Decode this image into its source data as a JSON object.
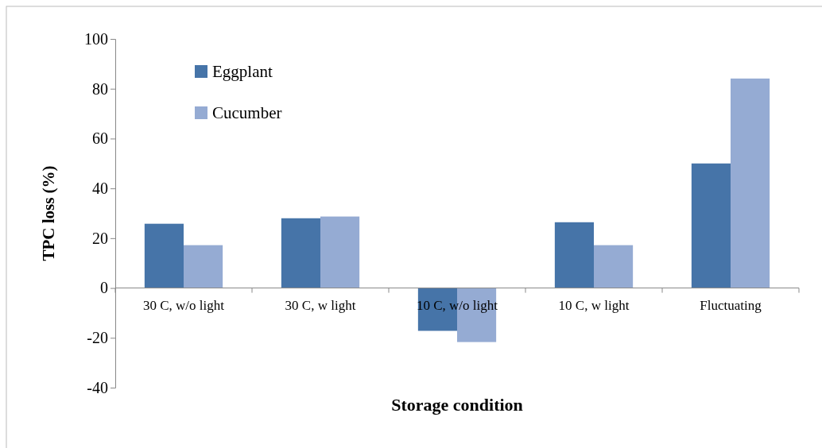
{
  "chart_data": {
    "type": "bar",
    "xlabel": "Storage condition",
    "ylabel": "TPC loss (%)",
    "categories": [
      "30 C, w/o light",
      "30 C, w light",
      "10 C, w/o light",
      "10 C, w light",
      "Fluctuating"
    ],
    "series": [
      {
        "name": "Eggplant",
        "color": "#4674a8",
        "values": [
          25.8,
          28,
          -17.2,
          26.4,
          50
        ]
      },
      {
        "name": "Cucumber",
        "color": "#95abd3",
        "values": [
          17.2,
          28.7,
          -21.7,
          17.2,
          84.1
        ]
      }
    ],
    "ylim": [
      -40,
      100
    ],
    "yticks": [
      -40,
      -20,
      0,
      20,
      40,
      60,
      80,
      100
    ],
    "grid": false,
    "legend": "top left"
  }
}
